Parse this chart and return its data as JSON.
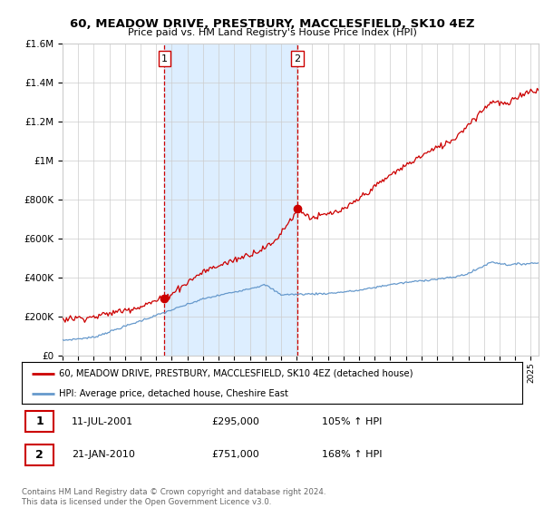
{
  "title": "60, MEADOW DRIVE, PRESTBURY, MACCLESFIELD, SK10 4EZ",
  "subtitle": "Price paid vs. HM Land Registry's House Price Index (HPI)",
  "legend_line1": "60, MEADOW DRIVE, PRESTBURY, MACCLESFIELD, SK10 4EZ (detached house)",
  "legend_line2": "HPI: Average price, detached house, Cheshire East",
  "transaction1_date": "11-JUL-2001",
  "transaction1_price": "£295,000",
  "transaction1_hpi": "105% ↑ HPI",
  "transaction2_date": "21-JAN-2010",
  "transaction2_price": "£751,000",
  "transaction2_hpi": "168% ↑ HPI",
  "footer": "Contains HM Land Registry data © Crown copyright and database right 2024.\nThis data is licensed under the Open Government Licence v3.0.",
  "red_line_color": "#cc0000",
  "blue_line_color": "#6699cc",
  "vline_color": "#cc0000",
  "shade_color": "#ddeeff",
  "background_color": "#ffffff",
  "grid_color": "#cccccc",
  "ylim": [
    0,
    1600000
  ],
  "xlim_start": 1995.0,
  "xlim_end": 2025.5,
  "transaction1_x": 2001.53,
  "transaction2_x": 2010.05,
  "transaction1_y": 295000,
  "transaction2_y": 751000
}
